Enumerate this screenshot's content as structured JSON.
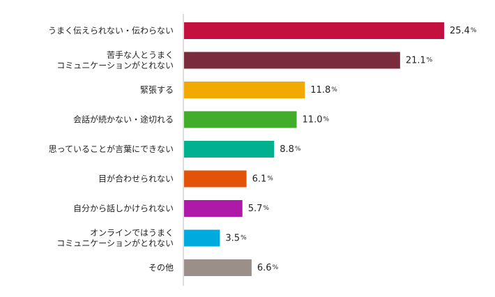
{
  "chart_data": {
    "type": "bar",
    "orientation": "horizontal",
    "unit": "%",
    "title": "",
    "xlabel": "",
    "ylabel": "",
    "xlim": [
      0,
      25.4
    ],
    "grid": false,
    "legend": "none",
    "categories": [
      [
        "うまく伝えられない・伝わらない"
      ],
      [
        "苦手な人とうまく",
        "コミュニケーションがとれない"
      ],
      [
        "緊張する"
      ],
      [
        "会話が続かない・途切れる"
      ],
      [
        "思っていることが言葉にできない"
      ],
      [
        "目が合わせられない"
      ],
      [
        "自分から話しかけられない"
      ],
      [
        "オンラインではうまく",
        "コミュニケーションがとれない"
      ],
      [
        "その他"
      ]
    ],
    "values": [
      25.4,
      21.1,
      11.8,
      11.0,
      8.8,
      6.1,
      5.7,
      3.5,
      6.6
    ],
    "value_labels": [
      "25.4",
      "21.1",
      "11.8",
      "11.0",
      "8.8",
      "6.1",
      "5.7",
      "3.5",
      "6.6"
    ],
    "colors": [
      "#c4103e",
      "#7a2b3c",
      "#f2a900",
      "#41ad2b",
      "#00b08e",
      "#e25207",
      "#ae19aa",
      "#00aadf",
      "#9b9089"
    ],
    "axis_color": "#bbbbbb"
  }
}
